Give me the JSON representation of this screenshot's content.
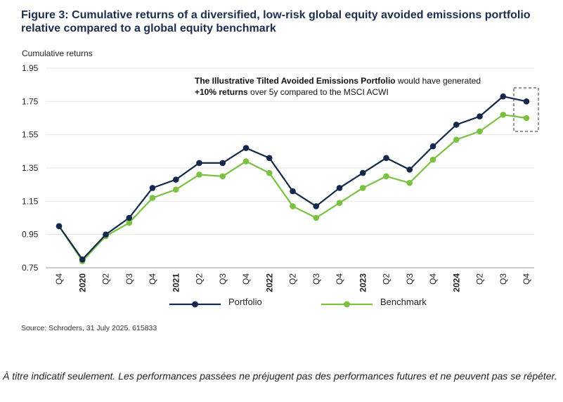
{
  "title": "Figure 3: Cumulative returns of a diversified, low-risk global equity avoided emissions portfolio relative compared to a global equity benchmark",
  "annotation": {
    "bold_a": "The Illustrative Tilted Avoided Emissions Portfolio",
    "text_a": " would have generated ",
    "bold_b": "+10% returns",
    "text_b": " over 5y compared to the MSCI ACWI"
  },
  "source": "Source: Schroders, 31 July 2025. 615833",
  "disclaimer": "À titre indicatif seulement. Les performances passées ne préjugent pas des performances futures et ne peuvent pas se répéter.",
  "colors": {
    "portfolio": "#13284a",
    "benchmark": "#7ac142",
    "title": "#1d2d4f"
  },
  "chart_data": {
    "type": "line",
    "title": "Figure 3: Cumulative returns of a diversified, low-risk global equity avoided emissions portfolio relative compared to a global equity benchmark",
    "ylabel": "Cumulative returns",
    "xlabel": "",
    "ylim": [
      0.75,
      1.95
    ],
    "yticks": [
      "1.95",
      "1.75",
      "1.55",
      "1.35",
      "1.15",
      "0.95",
      "0.75"
    ],
    "grid": "horizontal",
    "legend": "bottom",
    "categories": [
      "Q4",
      "2020",
      "Q2",
      "Q3",
      "Q4",
      "2021",
      "Q2",
      "Q3",
      "Q4",
      "2022",
      "Q2",
      "Q3",
      "Q4",
      "2023",
      "Q2",
      "Q3",
      "Q4",
      "2024",
      "Q2",
      "Q3",
      "Q4"
    ],
    "series": [
      {
        "name": "Portfolio",
        "values": [
          1.0,
          0.8,
          0.95,
          1.05,
          1.23,
          1.28,
          1.38,
          1.38,
          1.47,
          1.41,
          1.21,
          1.12,
          1.23,
          1.32,
          1.41,
          1.34,
          1.48,
          1.61,
          1.66,
          1.78,
          1.75
        ]
      },
      {
        "name": "Benchmark",
        "values": [
          1.0,
          0.79,
          0.94,
          1.02,
          1.17,
          1.22,
          1.31,
          1.3,
          1.39,
          1.32,
          1.12,
          1.05,
          1.14,
          1.23,
          1.3,
          1.26,
          1.4,
          1.52,
          1.57,
          1.67,
          1.65
        ]
      }
    ]
  }
}
